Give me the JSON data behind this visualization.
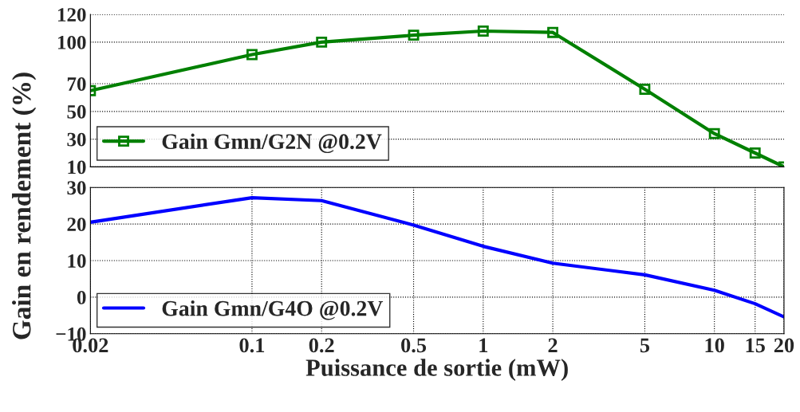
{
  "chart_data": [
    {
      "type": "line",
      "ylabel": "Gain en rendement (%)",
      "x": [
        0.02,
        0.1,
        0.2,
        0.5,
        1,
        2,
        5,
        10,
        15,
        20
      ],
      "series": [
        {
          "name": "Gain Gmn/G2N @0.2V",
          "color": "#008000",
          "values": [
            65,
            91,
            100,
            105,
            108,
            107,
            66,
            34,
            20,
            10
          ]
        }
      ],
      "marker": "square",
      "log": "x",
      "xlim": [
        0.02,
        20
      ],
      "ylim": [
        10,
        120
      ],
      "yticks": [
        10,
        30,
        50,
        70,
        100,
        120
      ],
      "grid": "y",
      "legend": "bottom left",
      "tick_labels": "y"
    },
    {
      "type": "line",
      "xlabel": "Puissance de sortie (mW)",
      "x": [
        0.02,
        0.1,
        0.2,
        0.5,
        1,
        2,
        5,
        10,
        15,
        20
      ],
      "series": [
        {
          "name": "Gain Gmn/G4O @0.2V",
          "color": "#0000ff",
          "values": [
            20.5,
            27.2,
            26.4,
            19.7,
            13.9,
            9.3,
            6.1,
            1.9,
            -1.8,
            -5.4
          ]
        }
      ],
      "log": "x",
      "xlim": [
        0.02,
        20
      ],
      "xticks": [
        0.02,
        0.1,
        0.2,
        0.5,
        1,
        2,
        5,
        10,
        15,
        20
      ],
      "ylim": [
        -10,
        30
      ],
      "yticks": [
        -10,
        0,
        10,
        20,
        30
      ],
      "grid": true,
      "legend": "bottom left"
    }
  ]
}
